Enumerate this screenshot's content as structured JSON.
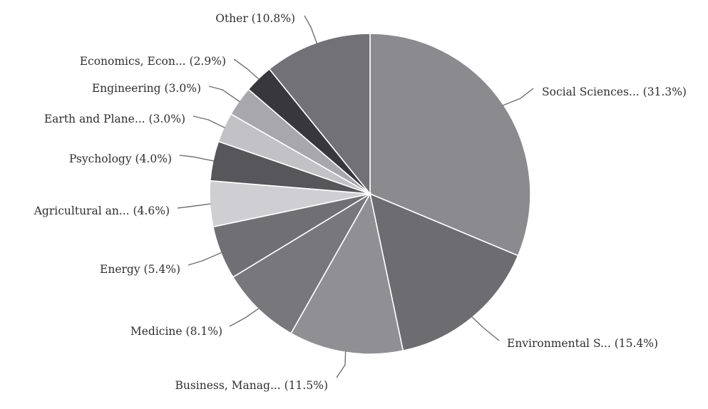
{
  "chart_data": {
    "type": "pie",
    "start": "top",
    "direction": "clockwise",
    "slices": [
      {
        "label": "Social Sciences...",
        "value": 31.3,
        "display": "Social Sciences... (31.3%)",
        "color": "#8a8a8f"
      },
      {
        "label": "Environmental S...",
        "value": 15.4,
        "display": "Environmental S... (15.4%)",
        "color": "#6c6c71"
      },
      {
        "label": "Business, Manag...",
        "value": 11.5,
        "display": "Business, Manag... (11.5%)",
        "color": "#8f8f94"
      },
      {
        "label": "Medicine",
        "value": 8.1,
        "display": "Medicine (8.1%)",
        "color": "#77777c"
      },
      {
        "label": "Energy",
        "value": 5.4,
        "display": "Energy (5.4%)",
        "color": "#6f6f74"
      },
      {
        "label": "Agricultural an...",
        "value": 4.6,
        "display": "Agricultural an... (4.6%)",
        "color": "#cfcfd3"
      },
      {
        "label": "Psychology",
        "value": 4.0,
        "display": "Psychology (4.0%)",
        "color": "#56565b"
      },
      {
        "label": "Earth and Plane...",
        "value": 3.0,
        "display": "Earth and Plane... (3.0%)",
        "color": "#c2c2c6"
      },
      {
        "label": "Engineering",
        "value": 3.0,
        "display": "Engineering (3.0%)",
        "color": "#a7a7ac"
      },
      {
        "label": "Economics, Econ...",
        "value": 2.9,
        "display": "Economics, Econ... (2.9%)",
        "color": "#38383c"
      },
      {
        "label": "Other",
        "value": 10.8,
        "display": "Other (10.8%)",
        "color": "#717176"
      }
    ]
  }
}
